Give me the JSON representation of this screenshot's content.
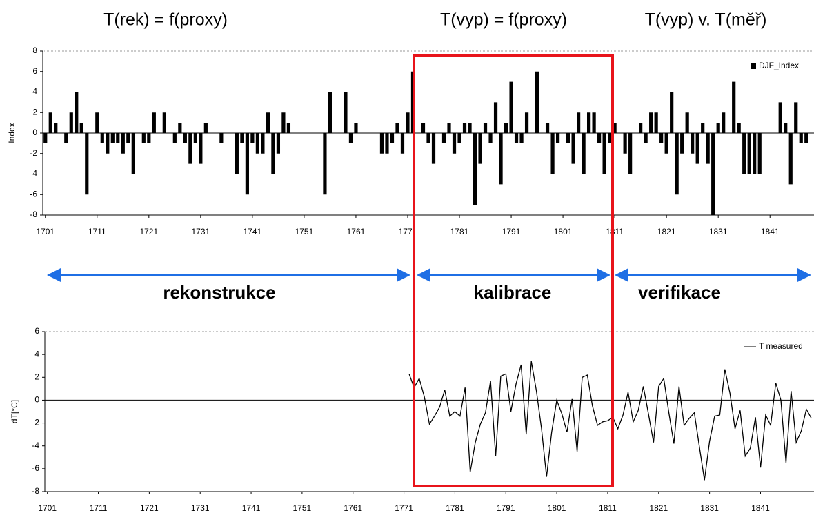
{
  "headings": [
    "T(rek) = f(proxy)",
    "T(vyp) = f(proxy)",
    "T(vyp) v. T(měř)"
  ],
  "phases": [
    "rekonstrukce",
    "kalibrace",
    "verifikace"
  ],
  "chart_data": [
    {
      "type": "bar",
      "ylabel": "Index",
      "legend": "top-right",
      "x": [
        1701,
        1702,
        1703,
        1705,
        1706,
        1707,
        1708,
        1709,
        1711,
        1712,
        1713,
        1714,
        1715,
        1716,
        1717,
        1718,
        1720,
        1721,
        1722,
        1724,
        1726,
        1727,
        1728,
        1729,
        1730,
        1731,
        1732,
        1735,
        1738,
        1739,
        1740,
        1741,
        1742,
        1743,
        1744,
        1745,
        1746,
        1747,
        1748,
        1755,
        1756,
        1759,
        1760,
        1761,
        1766,
        1767,
        1768,
        1769,
        1770,
        1771,
        1772,
        1774,
        1775,
        1776,
        1778,
        1779,
        1780,
        1781,
        1782,
        1783,
        1784,
        1785,
        1786,
        1787,
        1788,
        1789,
        1790,
        1791,
        1792,
        1793,
        1794,
        1796,
        1798,
        1799,
        1800,
        1802,
        1803,
        1804,
        1805,
        1806,
        1807,
        1808,
        1809,
        1810,
        1811,
        1813,
        1814,
        1816,
        1817,
        1818,
        1819,
        1820,
        1821,
        1822,
        1823,
        1824,
        1825,
        1826,
        1827,
        1828,
        1829,
        1830,
        1831,
        1832,
        1834,
        1835,
        1836,
        1837,
        1838,
        1839,
        1843,
        1844,
        1845,
        1846,
        1847,
        1848
      ],
      "series": [
        {
          "name": "DJF_Index",
          "color": "#000000",
          "values": [
            -1,
            2,
            1,
            -1,
            2,
            4,
            1,
            -6,
            2,
            -1,
            -2,
            -1,
            -1,
            -2,
            -1,
            -4,
            -1,
            -1,
            2,
            2,
            -1,
            1,
            -1,
            -3,
            -1,
            -3,
            1,
            -1,
            -4,
            -1,
            -6,
            -1,
            -2,
            -2,
            2,
            -4,
            -2,
            2,
            1,
            -6,
            4,
            4,
            -1,
            1,
            -2,
            -2,
            -1,
            1,
            -2,
            2,
            6,
            1,
            -1,
            -3,
            -1,
            1,
            -2,
            -1,
            1,
            1,
            -7,
            -3,
            1,
            -1,
            3,
            -5,
            1,
            5,
            -1,
            -1,
            2,
            6,
            1,
            -4,
            -1,
            -1,
            -3,
            2,
            -4,
            2,
            2,
            -1,
            -4,
            -1,
            1,
            -2,
            -4,
            1,
            -1,
            2,
            2,
            -1,
            -2,
            4,
            -6,
            -2,
            2,
            -2,
            -3,
            1,
            -3,
            -8,
            1,
            2,
            5,
            1,
            -4,
            -4,
            -4,
            -4,
            3,
            1,
            -5,
            3,
            -1,
            -1
          ]
        }
      ],
      "xlim": [
        1700.5,
        1849.5
      ],
      "ylim": [
        -8,
        8
      ],
      "xticks": [
        1701,
        1711,
        1721,
        1731,
        1741,
        1751,
        1761,
        1771,
        1781,
        1791,
        1801,
        1811,
        1821,
        1831,
        1841
      ],
      "yticks": [
        -8,
        -6,
        -4,
        -2,
        0,
        2,
        4,
        6,
        8
      ]
    },
    {
      "type": "line",
      "ylabel": "dT[°C]",
      "legend": "top-right",
      "x": [
        1772,
        1773,
        1774,
        1775,
        1776,
        1777,
        1778,
        1779,
        1780,
        1781,
        1782,
        1783,
        1784,
        1785,
        1786,
        1787,
        1788,
        1789,
        1790,
        1791,
        1792,
        1793,
        1794,
        1795,
        1796,
        1797,
        1798,
        1799,
        1800,
        1801,
        1802,
        1803,
        1804,
        1805,
        1806,
        1807,
        1808,
        1809,
        1810,
        1811,
        1812,
        1813,
        1814,
        1815,
        1816,
        1817,
        1818,
        1819,
        1820,
        1821,
        1822,
        1823,
        1824,
        1825,
        1826,
        1827,
        1828,
        1829,
        1830,
        1831,
        1832,
        1833,
        1834,
        1835,
        1836,
        1837,
        1838,
        1839,
        1840,
        1841,
        1842,
        1843,
        1844,
        1845,
        1846,
        1847,
        1848,
        1849,
        1850,
        1851
      ],
      "series": [
        {
          "name": "T measured",
          "color": "#000000",
          "values": [
            2.3,
            1.1,
            1.9,
            0.3,
            -2.1,
            -1.4,
            -0.6,
            0.9,
            -1.4,
            -1,
            -1.4,
            1.1,
            -6.3,
            -3.7,
            -2.1,
            -1.1,
            1.7,
            -4.9,
            2.1,
            2.3,
            -1,
            1.4,
            3.1,
            -3,
            3.4,
            0.8,
            -2.5,
            -6.7,
            -2.8,
            0,
            -1.2,
            -2.8,
            0.1,
            -4.5,
            2,
            2.2,
            -0.5,
            -2.2,
            -1.9,
            -1.8,
            -1.5,
            -2.5,
            -1.3,
            0.7,
            -1.9,
            -0.9,
            1.2,
            -1.2,
            -3.7,
            1.2,
            1.9,
            -1.1,
            -3.8,
            1.2,
            -2.2,
            -1.6,
            -1.1,
            -4.1,
            -7,
            -3.6,
            -1.4,
            -1.3,
            2.7,
            0.6,
            -2.5,
            -0.9,
            -4.9,
            -4.2,
            -1.5,
            -5.9,
            -1.3,
            -2.2,
            1.5,
            0,
            -5.5,
            0.8,
            -3.7,
            -2.7,
            -0.8,
            -1.6
          ]
        }
      ],
      "xlim": [
        1700.5,
        1851.5
      ],
      "ylim": [
        -8,
        6
      ],
      "xticks": [
        1701,
        1711,
        1721,
        1731,
        1741,
        1751,
        1761,
        1771,
        1781,
        1791,
        1801,
        1811,
        1821,
        1831,
        1841
      ],
      "yticks": [
        -8,
        -6,
        -4,
        -2,
        0,
        2,
        4,
        6
      ]
    }
  ]
}
